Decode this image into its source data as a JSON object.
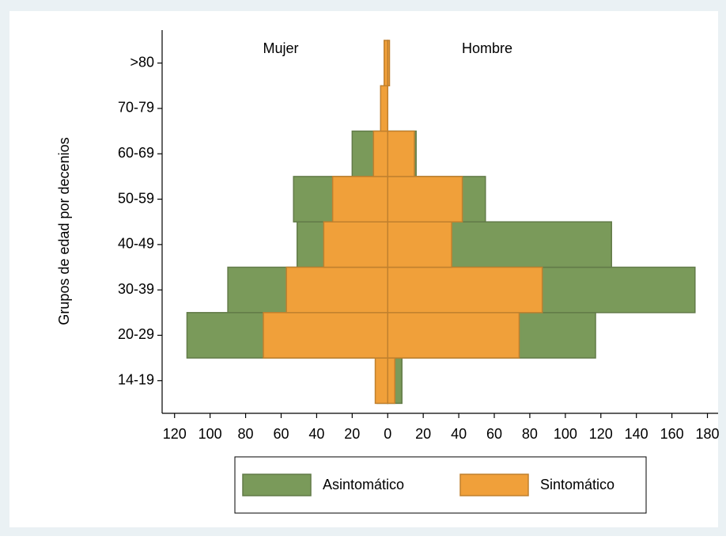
{
  "chart_data": {
    "type": "pyramid",
    "y_label": "Grupos de edad por decenios",
    "left_label": "Mujer",
    "right_label": "Hombre",
    "categories": [
      "14-19",
      "20-29",
      "30-39",
      "40-49",
      "50-59",
      "60-69",
      "70-79",
      ">80"
    ],
    "series": [
      {
        "name": "Asintomático",
        "color": "#7a9a5a",
        "mujer": [
          6,
          113,
          90,
          51,
          53,
          20,
          0,
          0
        ],
        "hombre": [
          8,
          117,
          173,
          126,
          55,
          16,
          0,
          0
        ]
      },
      {
        "name": "Sintomático",
        "color": "#f0a03a",
        "mujer": [
          7,
          70,
          57,
          36,
          31,
          8,
          4,
          2
        ],
        "hombre": [
          4,
          74,
          87,
          36,
          42,
          15,
          0,
          1
        ]
      }
    ],
    "xlim": [
      -127,
      186
    ],
    "xticks": [
      {
        "value": -120,
        "label": "120"
      },
      {
        "value": -100,
        "label": "100"
      },
      {
        "value": -80,
        "label": "80"
      },
      {
        "value": -60,
        "label": "60"
      },
      {
        "value": -40,
        "label": "40"
      },
      {
        "value": -20,
        "label": "20"
      },
      0,
      20,
      40,
      60,
      80,
      100,
      120,
      140,
      160,
      180
    ]
  }
}
